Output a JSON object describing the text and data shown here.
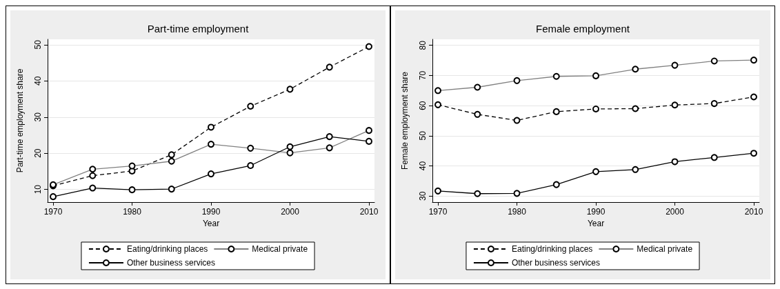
{
  "chart_data": [
    {
      "type": "line",
      "title": "Part-time employment",
      "xlabel": "Year",
      "ylabel": "Part-time employment share",
      "x": [
        1970,
        1975,
        1980,
        1985,
        1990,
        1995,
        2000,
        2005,
        2010
      ],
      "xlim": [
        1969.3,
        2010.7
      ],
      "xticks": [
        1970,
        1980,
        1990,
        2000,
        2010
      ],
      "ylim": [
        6.5,
        51.5
      ],
      "yticks": [
        10,
        20,
        30,
        40,
        50
      ],
      "grid": "y",
      "legend": "bottom",
      "marker": "circle",
      "series": [
        {
          "name": "Eating/drinking places",
          "color": "#000000",
          "line_style": "dashed",
          "values": [
            11.0,
            13.8,
            15.1,
            19.6,
            27.2,
            33.0,
            37.7,
            43.8,
            49.5
          ]
        },
        {
          "name": "Medical private",
          "color": "#808080",
          "line_style": "solid",
          "values": [
            11.3,
            15.6,
            16.5,
            17.8,
            22.5,
            21.4,
            20.1,
            21.5,
            26.3
          ]
        },
        {
          "name": "Other business services",
          "color": "#000000",
          "line_style": "solid",
          "values": [
            8.0,
            10.4,
            9.9,
            10.1,
            14.3,
            16.6,
            21.8,
            24.6,
            23.3
          ]
        }
      ]
    },
    {
      "type": "line",
      "title": "Female employment",
      "xlabel": "Year",
      "ylabel": "Female employment share",
      "x": [
        1970,
        1975,
        1980,
        1985,
        1990,
        1995,
        2000,
        2005,
        2010
      ],
      "xlim": [
        1969.3,
        2010.7
      ],
      "xticks": [
        1970,
        1980,
        1990,
        2000,
        2010
      ],
      "ylim": [
        28,
        82
      ],
      "yticks": [
        30,
        40,
        50,
        60,
        70,
        80
      ],
      "grid": "y",
      "legend": "bottom",
      "marker": "circle",
      "series": [
        {
          "name": "Eating/drinking places",
          "color": "#000000",
          "line_style": "dashed",
          "values": [
            60.3,
            57.1,
            55.1,
            58.0,
            58.9,
            59.0,
            60.2,
            60.7,
            62.9
          ]
        },
        {
          "name": "Medical private",
          "color": "#808080",
          "line_style": "solid",
          "values": [
            65.0,
            66.1,
            68.3,
            69.7,
            69.9,
            72.1,
            73.4,
            74.8,
            75.1
          ]
        },
        {
          "name": "Other business services",
          "color": "#000000",
          "line_style": "solid",
          "values": [
            31.7,
            30.8,
            30.9,
            33.8,
            38.1,
            38.8,
            41.4,
            42.8,
            44.2
          ]
        }
      ]
    }
  ]
}
